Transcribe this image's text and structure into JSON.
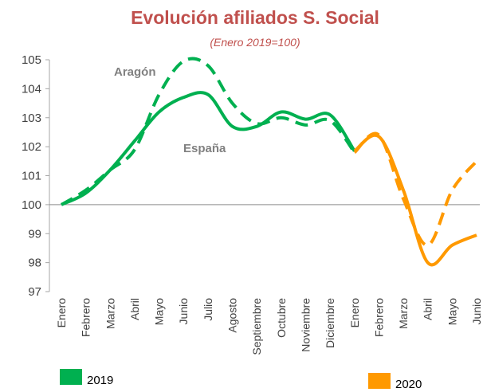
{
  "chart_data": {
    "type": "line",
    "title": "Evolución afiliados S. Social",
    "subtitle": "(Enero 2019=100)",
    "categories": [
      "Enero",
      "Febrero",
      "Marzo",
      "Abril",
      "Mayo",
      "Junio",
      "Julio",
      "Agosto",
      "Septiembre",
      "Octubre",
      "Noviembre",
      "Diciembre",
      "Enero",
      "Febrero",
      "Marzo",
      "Abril",
      "Mayo",
      "Junio"
    ],
    "periods": [
      {
        "name": "2019",
        "color": "#00b050",
        "count": 12
      },
      {
        "name": "2020",
        "color": "#ff9900",
        "count": 6
      }
    ],
    "series": [
      {
        "name": "Aragón",
        "dashed": true,
        "values": [
          100,
          100.5,
          101.2,
          101.9,
          103.8,
          104.95,
          104.8,
          103.5,
          102.8,
          103.0,
          102.75,
          102.9,
          101.8,
          102.4,
          100.2,
          98.6,
          100.5,
          101.5
        ]
      },
      {
        "name": "España",
        "dashed": false,
        "values": [
          100,
          100.4,
          101.2,
          102.2,
          103.2,
          103.7,
          103.8,
          102.7,
          102.7,
          103.2,
          102.95,
          103.1,
          101.85,
          102.35,
          100.5,
          98.0,
          98.6,
          98.95
        ]
      }
    ],
    "ylim": [
      97,
      105
    ],
    "yticks": [
      97,
      98,
      99,
      100,
      101,
      102,
      103,
      104,
      105
    ],
    "hline": 100
  }
}
